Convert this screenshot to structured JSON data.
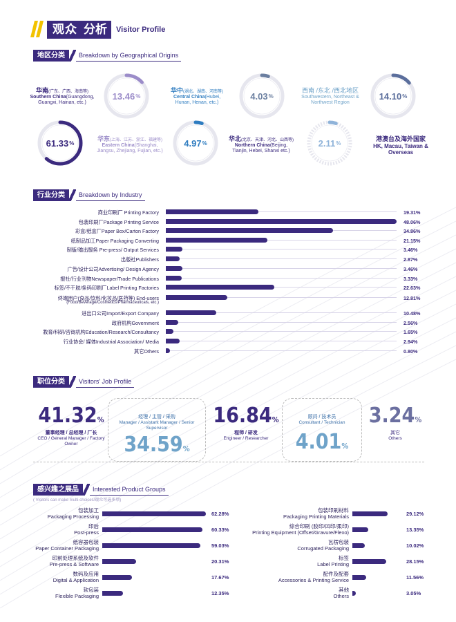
{
  "header": {
    "title_cn_1": "观众",
    "title_cn_2": "分析",
    "title_en": "Visitor Profile"
  },
  "colors": {
    "primary": "#3b2a7e",
    "accent_light": "#6fa3c9",
    "ring_bg": "#e6e6ee"
  },
  "geo": {
    "heading_cn": "地区分类",
    "heading_en": "Breakdown by Geographical Origins",
    "regions": [
      {
        "cn": "华南",
        "cn_sub": "(广东、广西、海南等)",
        "en": "Southern China",
        "en_sub": "(Guangdong, Guangxi, Hainan, etc.)",
        "value": "13.46",
        "pct_sign": "%",
        "percent": 13.46,
        "color": "#9b8cc9"
      },
      {
        "cn": "华中",
        "cn_sub": "(湖北、湖南、河南等)",
        "en": "Central China",
        "en_sub": "(Hubei, Hunan, Henan, etc.)",
        "value": "4.03",
        "pct_sign": "%",
        "percent": 4.03,
        "color": "#6b7fa0"
      },
      {
        "cn": "西南 /东北 /西北地区",
        "cn_sub": "",
        "en": "Southwestern, Northeast & Northwest Region",
        "en_sub": "",
        "value": "14.10",
        "pct_sign": "%",
        "percent": 14.1,
        "color": "#5b6e9c"
      },
      {
        "cn": "华东",
        "cn_sub": "(上海、江苏、浙江、福建等)",
        "en": "Eastern China",
        "en_sub": "(Shanghai, Jiangsu, Zhejiang, Fujian, etc.)",
        "value": "61.33",
        "pct_sign": "%",
        "percent": 61.33,
        "color": "#3b2a7e"
      },
      {
        "cn": "",
        "cn_sub": "",
        "en": "",
        "en_sub": "",
        "value": "4.97",
        "pct_sign": "%",
        "percent": 4.97,
        "color": "#2e7cc0"
      },
      {
        "cn": "华北",
        "cn_sub": "(北京、天津、河北、山西等)",
        "en": "Northern China",
        "en_sub": "(Beijing, Tianjin, Hebei, Shanxi etc.)",
        "value": "2.11",
        "pct_sign": "%",
        "percent": 2.11,
        "color": "#8fb3d9"
      },
      {
        "cn": "港澳台及海外国家",
        "cn_sub": "",
        "en": "HK, Macau, Taiwan & Overseas",
        "en_sub": "",
        "value": "",
        "pct_sign": "",
        "percent": 0,
        "color": "#3b2a7e"
      }
    ]
  },
  "industry": {
    "heading_cn": "行业分类",
    "heading_en": "Breakdown by Industry",
    "rows": [
      {
        "label": "商业印刷厂 Printing Factory",
        "sub": "",
        "value": 19.31,
        "display": "19.31%"
      },
      {
        "label": "包装印刷厂Package Printing Service",
        "sub": "",
        "value": 48.06,
        "display": "48.06%"
      },
      {
        "label": "彩盒/纸盒厂Paper Box/Carton Factory",
        "sub": "",
        "value": 34.86,
        "display": "34.86%"
      },
      {
        "label": "纸制品加工Paper Packaging Converting",
        "sub": "",
        "value": 21.15,
        "display": "21.15%"
      },
      {
        "label": "制版/输出服务 Pre-press/ Output Services",
        "sub": "",
        "value": 3.46,
        "display": "3.46%"
      },
      {
        "label": "出版社Publishers",
        "sub": "",
        "value": 2.87,
        "display": "2.87%"
      },
      {
        "label": "广告/设计公司Advertising/ Design Agency",
        "sub": "",
        "value": 3.46,
        "display": "3.46%"
      },
      {
        "label": "报社/行业刊物Newspaper/Trade Publications",
        "sub": "",
        "value": 3.33,
        "display": "3.33%"
      },
      {
        "label": "标签/不干胶/条码印刷厂Label Printing Factories",
        "sub": "",
        "value": 22.63,
        "display": "22.63%"
      },
      {
        "label": "终端用户(食品/饮料/化妆品/医药等) End-users",
        "sub": "(Food/Beverage/Cosmetics/Pharmaceuticals, etc.)",
        "value": 12.81,
        "display": "12.81%"
      },
      {
        "label": "进出口公司Import/Export Company",
        "sub": "",
        "value": 10.48,
        "display": "10.48%"
      },
      {
        "label": "政府机构Government",
        "sub": "",
        "value": 2.56,
        "display": "2.56%"
      },
      {
        "label": "教育/科研/咨询机构Education/Research/Consultancy",
        "sub": "",
        "value": 1.65,
        "display": "1.65%"
      },
      {
        "label": "行业协会/ 媒体Industrial Association/ Media",
        "sub": "",
        "value": 2.94,
        "display": "2.94%"
      },
      {
        "label": "其它Others",
        "sub": "",
        "value": 0.8,
        "display": "0.80%"
      }
    ]
  },
  "job": {
    "heading_cn": "职位分类",
    "heading_en": "Visitors' Job Profile",
    "items": [
      {
        "value": "41.32",
        "pct": "%",
        "cn": "董事经理 / 总经理 / 厂长",
        "en": "CEO / General Manager / Factory Owner"
      },
      {
        "value": "34.59",
        "pct": "%",
        "cn": "经理 / 主管 / 采购",
        "en": "Manager / Assistant Manager / Senior Supervisor"
      },
      {
        "value": "16.84",
        "pct": "%",
        "cn": "程师 / 研发",
        "en": "Engineer / Researcher"
      },
      {
        "value": "4.01",
        "pct": "%",
        "cn": "顾问 / 技术员",
        "en": "Consultant / Technician"
      },
      {
        "value": "3.24",
        "pct": "%",
        "cn": "其它",
        "en": "Others"
      }
    ]
  },
  "products": {
    "heading_cn": "感兴趣之展品",
    "heading_en": "Interested Product Groups",
    "note": "( Visitors can make multi-choices/观众可选多项)",
    "left": [
      {
        "cn": "包装加工",
        "en": "Packaging Processing",
        "value": 62.28,
        "display": "62.28%"
      },
      {
        "cn": "印后",
        "en": "Post-press",
        "value": 60.33,
        "display": "60.33%"
      },
      {
        "cn": "纸容器包装",
        "en": "Paper Container Packaging",
        "value": 59.03,
        "display": "59.03%"
      },
      {
        "cn": "印前处理系统及软件",
        "en": "Pre-press & Software",
        "value": 20.31,
        "display": "20.31%"
      },
      {
        "cn": "数码及应用",
        "en": "Digital & Application",
        "value": 17.67,
        "display": "17.67%"
      },
      {
        "cn": "软包装",
        "en": "Flexible Packaging",
        "value": 12.35,
        "display": "12.35%"
      }
    ],
    "right": [
      {
        "cn": "包装印刷材料",
        "en": "Packaging Printing Materials",
        "value": 29.12,
        "display": "29.12%"
      },
      {
        "cn": "综合印刷 (胶印/凹印/柔印)",
        "en": "Printing Equipment (Offset/Gravure/Flexo)",
        "value": 13.35,
        "display": "13.35%"
      },
      {
        "cn": "瓦楞包装",
        "en": "Corrugated Packaging",
        "value": 10.02,
        "display": "10.02%"
      },
      {
        "cn": "标签",
        "en": "Label Printing",
        "value": 28.15,
        "display": "28.15%"
      },
      {
        "cn": "配件及配套",
        "en": "Accessories & Printing Service",
        "value": 11.56,
        "display": "11.56%"
      },
      {
        "cn": "其他",
        "en": "Others",
        "value": 3.05,
        "display": "3.05%"
      }
    ]
  },
  "chart_data": [
    {
      "type": "bar",
      "categories": [
        "商业印刷厂 Printing Factory",
        "包装印刷厂Package Printing Service",
        "彩盒/纸盒厂Paper Box/Carton Factory",
        "纸制品加工Paper Packaging Converting",
        "制版/输出服务 Pre-press/ Output Services",
        "出版社Publishers",
        "广告/设计公司Advertising/ Design Agency",
        "报社/行业刊物Newspaper/Trade Publications",
        "标签/不干胶/条码印刷厂Label Printing Factories",
        "终端用户(食品/饮料/化妆品/医药等) End-users",
        "进出口公司Import/Export Company",
        "政府机构Government",
        "教育/科研/咨询机构Education/Research/Consultancy",
        "行业协会/ 媒体Industrial Association/ Media",
        "其它Others"
      ],
      "values": [
        19.31,
        48.06,
        34.86,
        21.15,
        3.46,
        2.87,
        3.46,
        3.33,
        22.63,
        12.81,
        10.48,
        2.56,
        1.65,
        2.94,
        0.8
      ],
      "title": "行业分类 Breakdown by Industry",
      "xlabel": "",
      "ylabel": "",
      "ylim": [
        0,
        48.06
      ]
    },
    {
      "type": "bar",
      "categories": [
        "包装加工 Packaging Processing",
        "印后 Post-press",
        "纸容器包装 Paper Container Packaging",
        "印前处理系统及软件 Pre-press & Software",
        "数码及应用 Digital & Application",
        "软包装 Flexible Packaging",
        "包装印刷材料 Packaging Printing Materials",
        "综合印刷 (胶印/凹印/柔印) Printing Equipment (Offset/Gravure/Flexo)",
        "瓦楞包装 Corrugated Packaging",
        "标签 Label Printing",
        "配件及配套 Accessories & Printing Service",
        "其他 Others"
      ],
      "values": [
        62.28,
        60.33,
        59.03,
        20.31,
        17.67,
        12.35,
        29.12,
        13.35,
        10.02,
        28.15,
        11.56,
        3.05
      ],
      "title": "感兴趣之展品 Interested Product Groups",
      "xlabel": "",
      "ylabel": ""
    },
    {
      "type": "pie",
      "categories": [
        "华南 Southern China",
        "华中 Central China",
        "西南 /东北 /西北地区",
        "华东 Eastern China",
        "港澳台及海外国家",
        "华北 Northern China"
      ],
      "values": [
        13.46,
        4.03,
        14.1,
        61.33,
        4.97,
        2.11
      ],
      "title": "地区分类 Breakdown by Geographical Origins"
    }
  ]
}
